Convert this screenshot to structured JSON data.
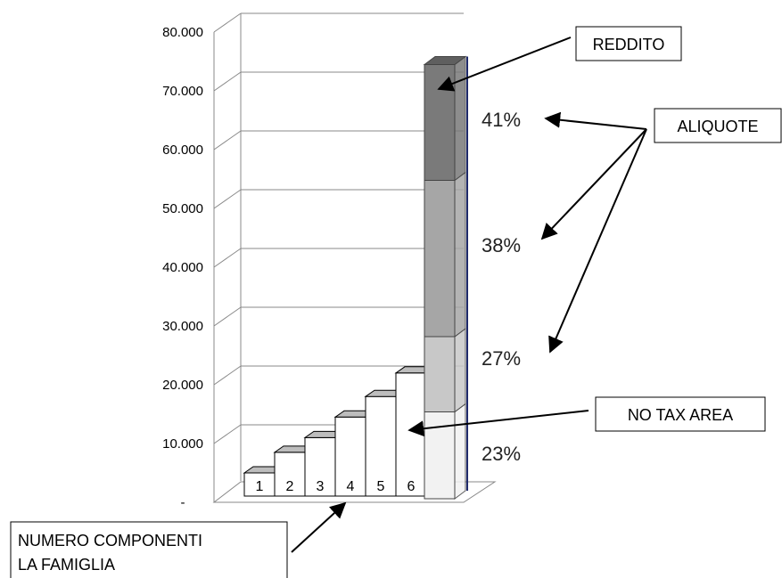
{
  "chart_data": {
    "type": "bar",
    "y_ticks": [
      "-",
      "10.000",
      "20.000",
      "30.000",
      "40.000",
      "50.000",
      "60.000",
      "70.000",
      "80.000"
    ],
    "ylim": [
      0,
      80000
    ],
    "grid": true,
    "family_bars": {
      "categories": [
        "1",
        "2",
        "3",
        "4",
        "5",
        "6"
      ],
      "values": [
        5000,
        8500,
        11000,
        14500,
        18000,
        22000
      ]
    },
    "income_stack": {
      "segments": [
        {
          "label": "23%",
          "from": 0,
          "to": 15000,
          "color": "#f2f2f2"
        },
        {
          "label": "27%",
          "from": 15000,
          "to": 28000,
          "color": "#c8c8c8"
        },
        {
          "label": "38%",
          "from": 28000,
          "to": 55000,
          "color": "#a6a6a6"
        },
        {
          "label": "41%",
          "from": 55000,
          "to": 75000,
          "color": "#7a7a7a"
        }
      ]
    },
    "annotations": {
      "reddito": "REDDITO",
      "aliquote": "ALIQUOTE",
      "no_tax_area": "NO TAX AREA",
      "numero_line1": "NUMERO COMPONENTI",
      "numero_line2": "LA FAMIGLIA"
    }
  }
}
